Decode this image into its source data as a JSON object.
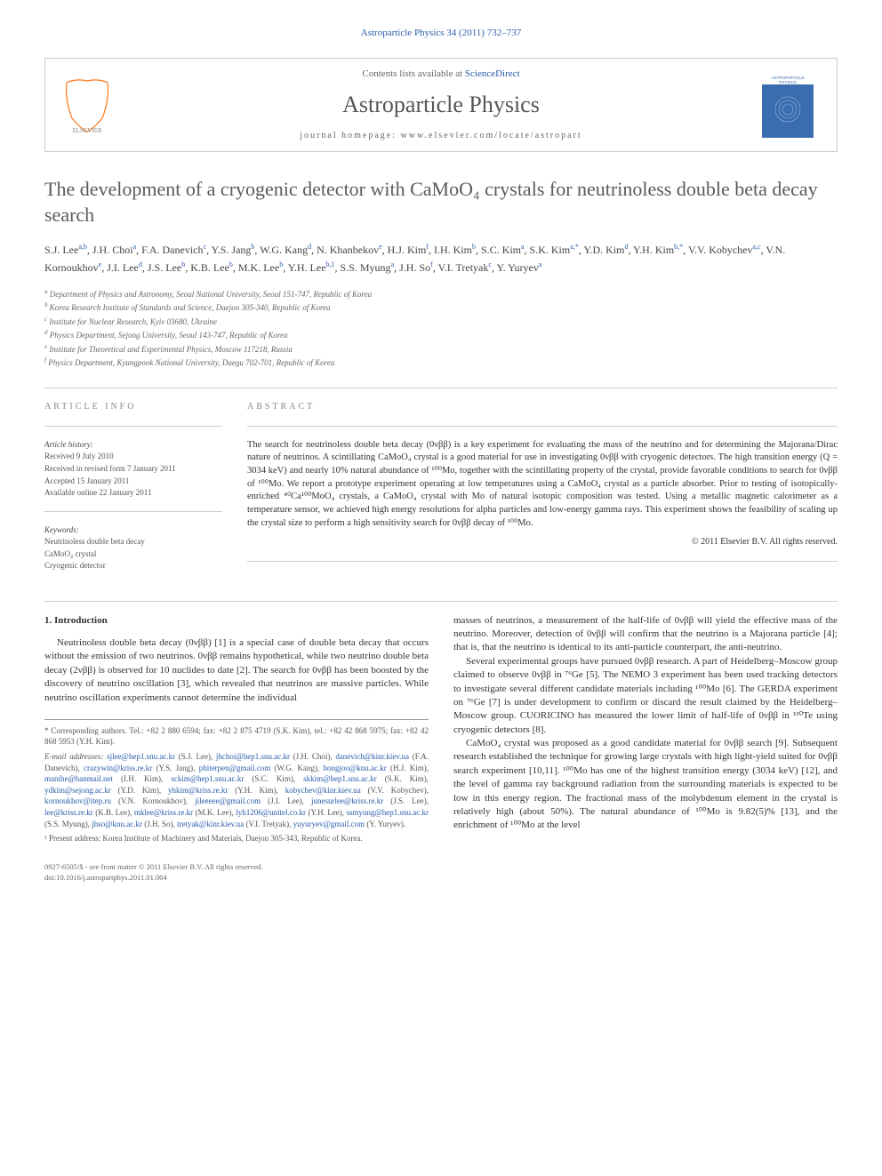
{
  "header": {
    "citation": "Astroparticle Physics 34 (2011) 732–737"
  },
  "banner": {
    "contents_prefix": "Contents lists available at ",
    "contents_link": "ScienceDirect",
    "journal_name": "Astroparticle Physics",
    "homepage_prefix": "journal homepage: ",
    "homepage_url": "www.elsevier.com/locate/astropart",
    "publisher_logo_color": "#ff7514",
    "journal_cover_bg": "#3a6db0"
  },
  "title": "The development of a cryogenic detector with CaMoO₄ crystals for neutrinoless double beta decay search",
  "authors_html": "S.J. Lee<span class='sup'>a,b</span>, J.H. Choi<span class='sup'>a</span>, F.A. Danevich<span class='sup'>c</span>, Y.S. Jang<span class='sup'>b</span>, W.G. Kang<span class='sup'>d</span>, N. Khanbekov<span class='sup'>e</span>, H.J. Kim<span class='sup'>f</span>, I.H. Kim<span class='sup'>b</span>, S.C. Kim<span class='sup'>a</span>, S.K. Kim<span class='sup'>a,*</span>, Y.D. Kim<span class='sup'>d</span>, Y.H. Kim<span class='sup'>b,*</span>, V.V. Kobychev<span class='sup'>a,c</span>, V.N. Kornoukhov<span class='sup'>e</span>, J.I. Lee<span class='sup'>d</span>, J.S. Lee<span class='sup'>b</span>, K.B. Lee<span class='sup'>b</span>, M.K. Lee<span class='sup'>b</span>, Y.H. Lee<span class='sup'>b,1</span>, S.S. Myung<span class='sup'>a</span>, J.H. So<span class='sup'>f</span>, V.I. Tretyak<span class='sup'>c</span>, Y. Yuryev<span class='sup'>a</span>",
  "affiliations": [
    {
      "sup": "a",
      "text": "Department of Physics and Astronomy, Seoul National University, Seoul 151-747, Republic of Korea"
    },
    {
      "sup": "b",
      "text": "Korea Research Institute of Standards and Science, Daejon 305-340, Republic of Korea"
    },
    {
      "sup": "c",
      "text": "Institute for Nuclear Research, Kyiv 03680, Ukraine"
    },
    {
      "sup": "d",
      "text": "Physics Department, Sejong University, Seoul 143-747, Republic of Korea"
    },
    {
      "sup": "e",
      "text": "Institute for Theoretical and Experimental Physics, Moscow 117218, Russia"
    },
    {
      "sup": "f",
      "text": "Physics Department, Kyungpook National University, Daegu 702-701, Republic of Korea"
    }
  ],
  "article_info": {
    "heading": "ARTICLE INFO",
    "history_label": "Article history:",
    "received": "Received 9 July 2010",
    "revised": "Received in revised form 7 January 2011",
    "accepted": "Accepted 15 January 2011",
    "available": "Available online 22 January 2011",
    "keywords_label": "Keywords:",
    "keywords": [
      "Neutrinoless double beta decay",
      "CaMoO₄ crystal",
      "Cryogenic detector"
    ]
  },
  "abstract": {
    "heading": "ABSTRACT",
    "text": "The search for neutrinoless double beta decay (0νββ) is a key experiment for evaluating the mass of the neutrino and for determining the Majorana/Dirac nature of neutrinos. A scintillating CaMoO₄ crystal is a good material for use in investigating 0νββ with cryogenic detectors. The high transition energy (Q = 3034 keV) and nearly 10% natural abundance of ¹⁰⁰Mo, together with the scintillating property of the crystal, provide favorable conditions to search for 0νββ of ¹⁰⁰Mo. We report a prototype experiment operating at low temperatures using a CaMoO₄ crystal as a particle absorber. Prior to testing of isotopically-enriched ⁴⁰Ca¹⁰⁰MoO₄ crystals, a CaMoO₄ crystal with Mo of natural isotopic composition was tested. Using a metallic magnetic calorimeter as a temperature sensor, we achieved high energy resolutions for alpha particles and low-energy gamma rays. This experiment shows the feasibility of scaling up the crystal size to perform a high sensitivity search for 0νββ decay of ¹⁰⁰Mo.",
    "copyright": "© 2011 Elsevier B.V. All rights reserved."
  },
  "body": {
    "section1_head": "1. Introduction",
    "col1_p1": "Neutrinoless double beta decay (0νββ) [1] is a special case of double beta decay that occurs without the emission of two neutrinos. 0νββ remains hypothetical, while two neutrino double beta decay (2νββ) is observed for 10 nuclides to date [2]. The search for 0νββ has been boosted by the discovery of neutrino oscillation [3], which revealed that neutrinos are massive particles. While neutrino oscillation experiments cannot determine the individual",
    "col2_p1": "masses of neutrinos, a measurement of the half-life of 0νββ will yield the effective mass of the neutrino. Moreover, detection of 0νββ will confirm that the neutrino is a Majorana particle [4]; that is, that the neutrino is identical to its anti-particle counterpart, the anti-neutrino.",
    "col2_p2": "Several experimental groups have pursued 0νββ research. A part of Heidelberg–Moscow group claimed to observe 0νββ in ⁷⁶Ge [5]. The NEMO 3 experiment has been used tracking detectors to investigate several different candidate materials including ¹⁰⁰Mo [6]. The GERDA experiment on ⁷⁶Ge [7] is under development to confirm or discard the result claimed by the Heidelberg–Moscow group. CUORICINO has measured the lower limit of half-life of 0νββ in ¹³⁰Te using cryogenic detectors [8].",
    "col2_p3": "CaMoO₄ crystal was proposed as a good candidate material for 0νββ search [9]. Subsequent research established the technique for growing large crystals with high light-yield suited for 0νββ search experiment [10,11]. ¹⁰⁰Mo has one of the highest transition energy (3034 keV) [12], and the level of gamma ray background radiation from the surrounding materials is expected to be low in this energy region. The fractional mass of the molybdenum element in the crystal is relatively high (about 50%). The natural abundance of ¹⁰⁰Mo is 9.82(5)% [13], and the enrichment of ¹⁰⁰Mo at the level"
  },
  "footnotes": {
    "corr": "* Corresponding authors. Tel.: +82 2 880 6594; fax: +82 2 875 4719 (S.K. Kim), tel.: +82 42 868 5975; fax: +82 42 868 5953 (Y.H. Kim).",
    "emails_label": "E-mail addresses:",
    "emails_html": "<span class='email'>sjlee@hep1.snu.ac.kr</span> (S.J. Lee), <span class='email'>jhchoi@hep1.snu.ac.kr</span> (J.H. Choi), <span class='email'>danevich@kinr.kiev.ua</span> (F.A. Danevich), <span class='email'>crazywin@kriss.re.kr</span> (Y.S. Jang), <span class='email'>phiterpen@gmail.com</span> (W.G. Kang), <span class='email'>hongjoo@knu.ac.kr</span> (H.J. Kim), <span class='email'>manihe@hanmail.net</span> (I.H. Kim), <span class='email'>sckim@hep1.snu.ac.kr</span> (S.C. Kim), <span class='email'>skkim@hep1.snu.ac.kr</span> (S.K. Kim), <span class='email'>ydkim@sejong.ac.kr</span> (Y.D. Kim), <span class='email'>yhkim@kriss.re.kr</span> (Y.H. Kim), <span class='email'>kobychev@kinr.kiev.ua</span> (V.V. Kobychev), <span class='email'>kornoukhov@itep.ru</span> (V.N. Kornoukhov), <span class='email'>jileeeee@gmail.com</span> (J.I. Lee), <span class='email'>junesurlee@kriss.re.kr</span> (J.S. Lee), <span class='email'>lee@kriss.re.kr</span> (K.B. Lee), <span class='email'>mklee@kriss.re.kr</span> (M.K. Lee), <span class='email'>lyh1206@unitel.co.kr</span> (Y.H. Lee), <span class='email'>ssmyung@hep1.snu.ac.kr</span> (S.S. Myung), <span class='email'>jhso@knu.ac.kr</span> (J.H. So), <span class='email'>tretyak@kinr.kiev.ua</span> (V.I. Tretyak), <span class='email'>yuyuryev@gmail.com</span> (Y. Yuryev).",
    "present": "¹ Present address: Korea Institute of Machinery and Materials, Daejon 305-343, Republic of Korea."
  },
  "footer": {
    "line1": "0927-6505/$ - see front matter © 2011 Elsevier B.V. All rights reserved.",
    "line2": "doi:10.1016/j.astropartphys.2011.01.004"
  },
  "colors": {
    "link": "#2a5caa",
    "text": "#333333",
    "muted": "#666666",
    "border": "#cccccc"
  }
}
